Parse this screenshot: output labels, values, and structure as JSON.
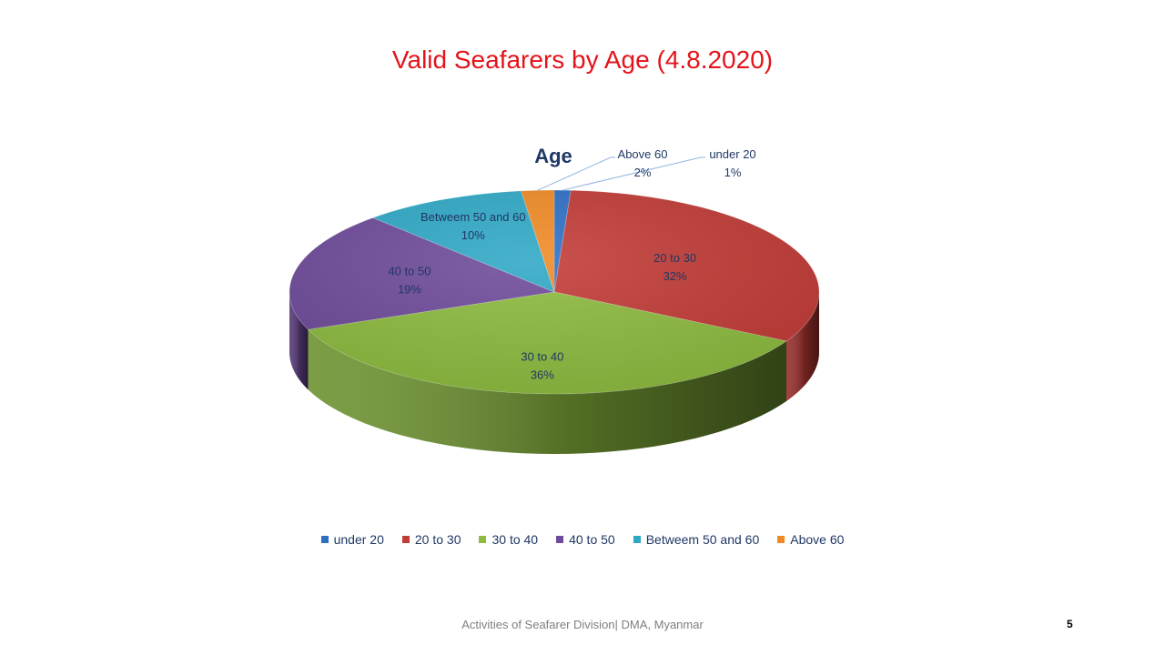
{
  "slide": {
    "title": "Valid Seafarers by Age (4.8.2020)",
    "footer": "Activities of Seafarer Division| DMA, Myanmar",
    "page_number": "5"
  },
  "chart_data": {
    "type": "pie",
    "title": "Age",
    "three_d": true,
    "legend_position": "bottom",
    "slices": [
      {
        "label": "under 20",
        "value": 1,
        "value_label": "1%",
        "color": "#2e6fc4",
        "leader_line": true
      },
      {
        "label": "20 to 30",
        "value": 32,
        "value_label": "32%",
        "color": "#c23b36"
      },
      {
        "label": "30 to 40",
        "value": 36,
        "value_label": "36%",
        "color": "#8cbb3e"
      },
      {
        "label": "40 to 50",
        "value": 19,
        "value_label": "19%",
        "color": "#6e4a9a"
      },
      {
        "label": "Betweem 50 and 60",
        "value": 10,
        "value_label": "10%",
        "color": "#2fa8c6"
      },
      {
        "label": "Above 60",
        "value": 2,
        "value_label": "2%",
        "color": "#f08a24",
        "leader_line": true
      }
    ]
  }
}
